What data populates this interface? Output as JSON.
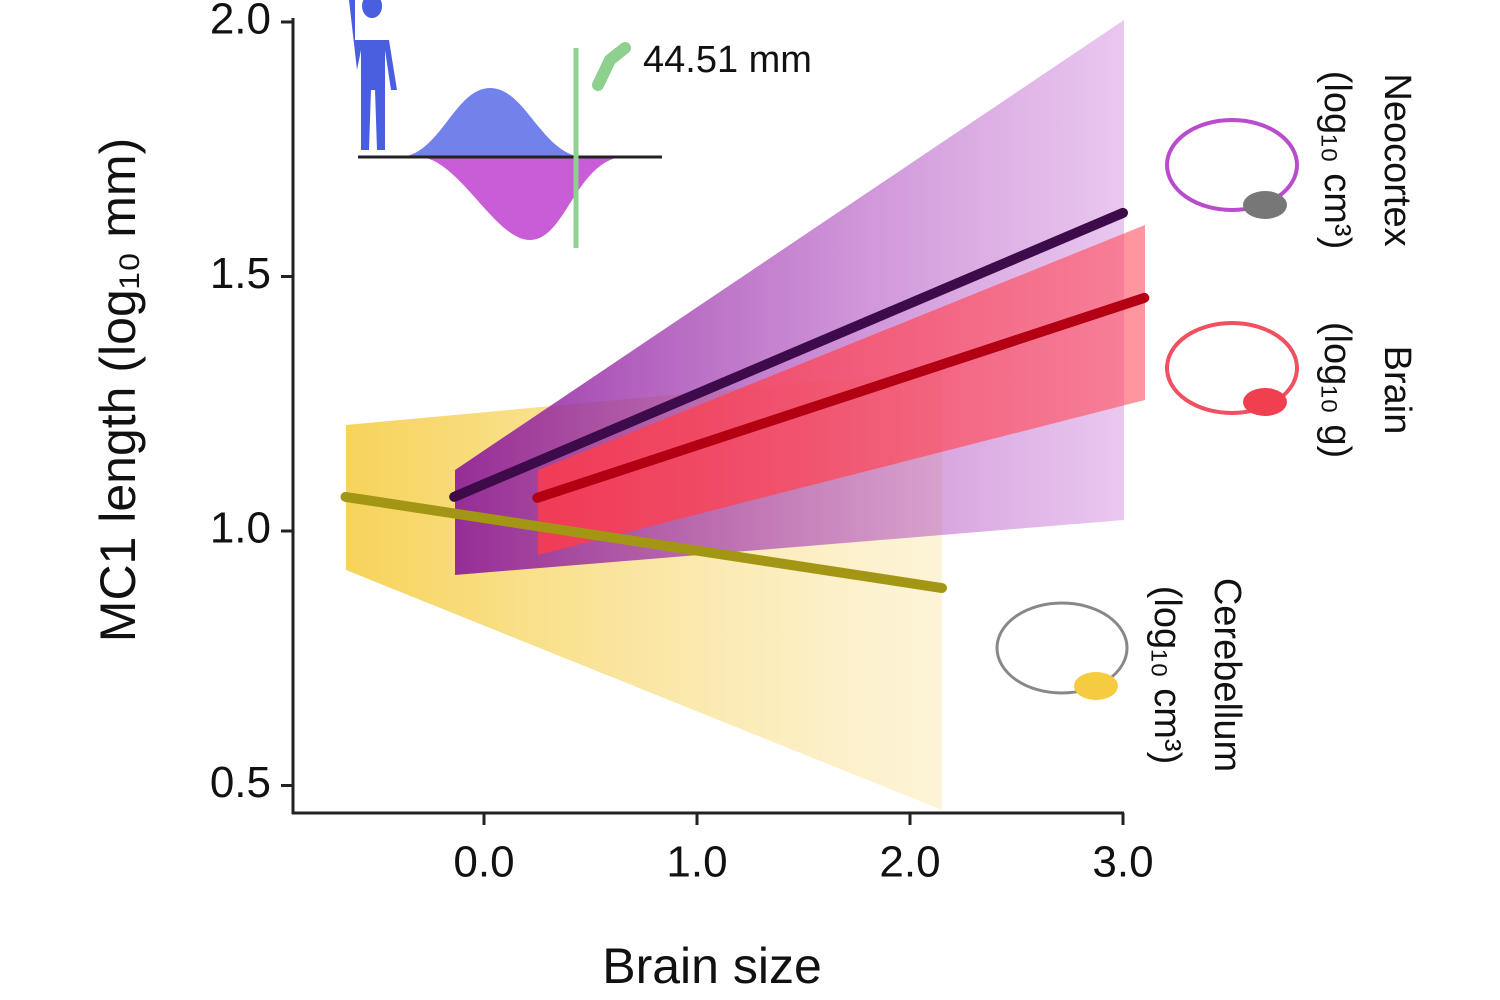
{
  "chart_data": {
    "type": "line",
    "x_label": "Brain size",
    "y_label": "MC1 length (log₁₀ mm)",
    "annotation": "44.51 mm",
    "xlim": [
      -0.9,
      3.0
    ],
    "ylim": [
      0.45,
      2.0
    ],
    "xticks": [
      {
        "value": 0,
        "label": "0.0"
      },
      {
        "value": 1,
        "label": "1.0"
      },
      {
        "value": 2,
        "label": "2.0"
      },
      {
        "value": 3,
        "label": "3.0"
      }
    ],
    "yticks": [
      0.5,
      {
        "value": 1,
        "label": "1.0"
      },
      1.5,
      {
        "value": 2,
        "label": "2.0"
      }
    ],
    "series": [
      {
        "name": "Neocortex",
        "unit": "(log₁₀ cm³)",
        "color": "#3d0a4a",
        "x": [
          -0.14,
          3.0
        ],
        "values": [
          1.067,
          1.625
        ]
      },
      {
        "name": "Brain",
        "unit": "(log₁₀ g)",
        "color": "#b30012",
        "x": [
          0.25,
          3.1
        ],
        "values": [
          1.065,
          1.458
        ]
      },
      {
        "name": "Cerebellum",
        "unit": "(log₁₀ cm³)",
        "color": "#a39614",
        "x": [
          -0.65,
          2.15
        ],
        "values": [
          1.067,
          0.888
        ]
      }
    ]
  }
}
